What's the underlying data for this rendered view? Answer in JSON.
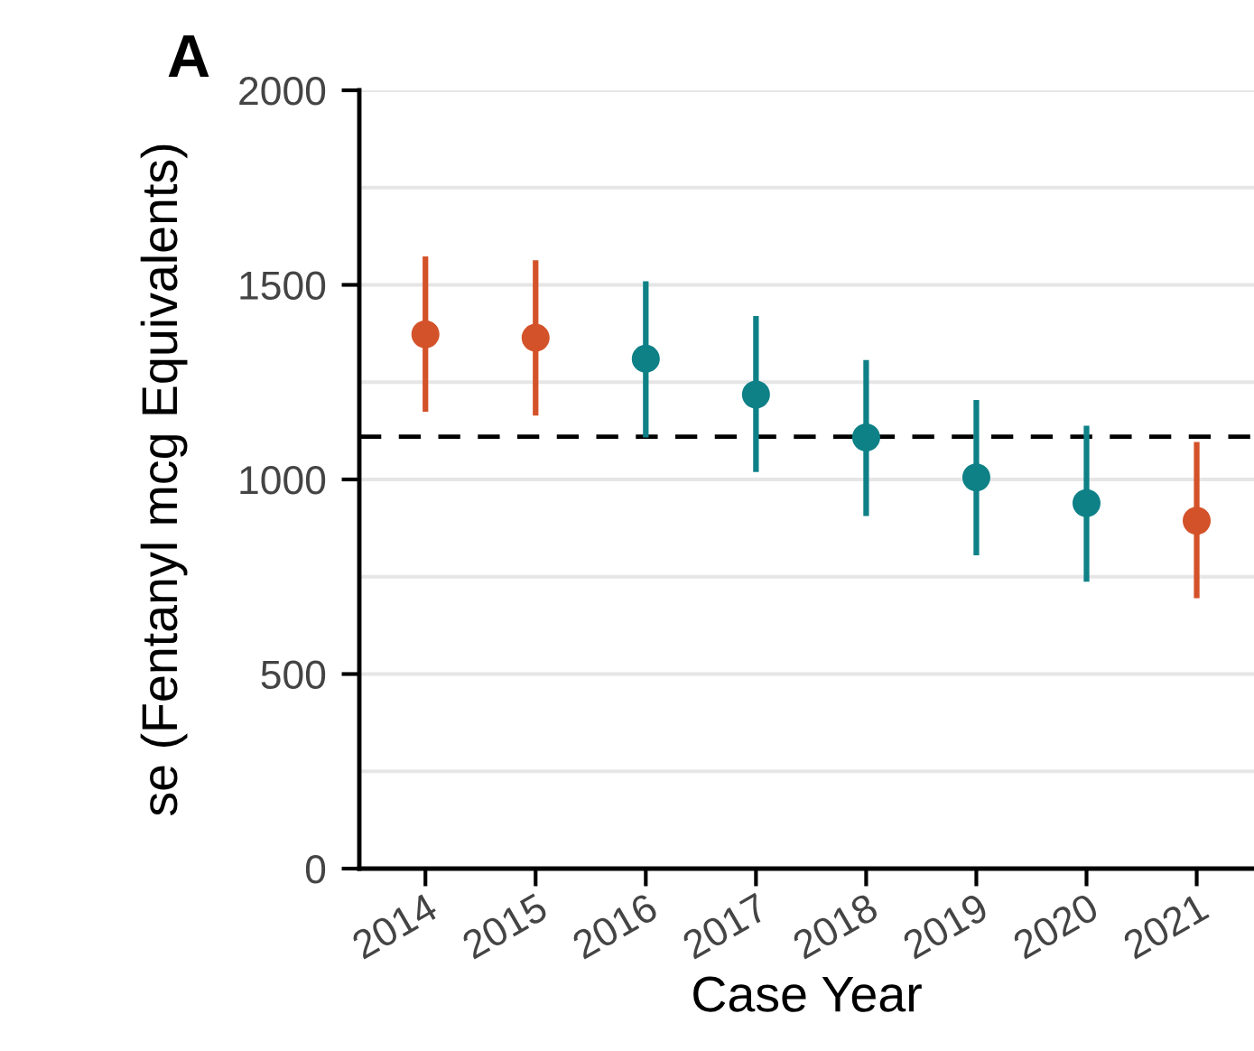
{
  "chart_data": {
    "type": "scatter",
    "title": "A",
    "xlabel": "Case Year",
    "ylabel": "se (Fentanyl mcg Equivalents)",
    "categories": [
      "2014",
      "2015",
      "2016",
      "2017",
      "2018",
      "2019",
      "2020",
      "2021"
    ],
    "values": [
      1373,
      1364,
      1310,
      1218,
      1108,
      1005,
      939,
      894
    ],
    "errors": [
      [
        1174,
        1573
      ],
      [
        1164,
        1563
      ],
      [
        1108,
        1509
      ],
      [
        1019,
        1420
      ],
      [
        906,
        1307
      ],
      [
        805,
        1204
      ],
      [
        737,
        1138
      ],
      [
        695,
        1096
      ]
    ],
    "colors": [
      "#d4522a",
      "#d4522a",
      "#0e8187",
      "#0e8187",
      "#0e8187",
      "#0e8187",
      "#0e8187",
      "#d4522a"
    ],
    "ylim": [
      0,
      2000
    ],
    "yticks": [
      0,
      {
        "value": 250,
        "label": null
      },
      500,
      {
        "value": 750,
        "label": null
      },
      1000,
      {
        "value": 1250,
        "label": null
      },
      1500,
      {
        "value": 1750,
        "label": null
      },
      2000
    ],
    "ref_lines": [
      {
        "axis": "y",
        "value": 1110,
        "color": "#000000",
        "line_style": "dashed"
      }
    ],
    "grid": "y",
    "marker": "circle"
  }
}
